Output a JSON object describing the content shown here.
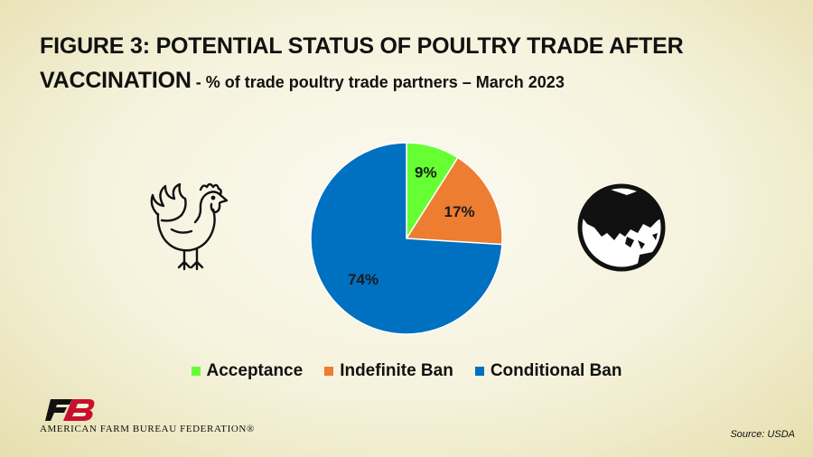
{
  "title": {
    "line1": "FIGURE  3: POTENTIAL STATUS OF POULTRY TRADE AFTER",
    "line2": "VACCINATION",
    "subtitle": " - % of trade poultry trade partners – March 2023"
  },
  "chart_data": {
    "type": "pie",
    "title": "FIGURE  3: POTENTIAL STATUS OF POULTRY TRADE AFTER VACCINATION - % of trade poultry trade partners – March 2023",
    "categories": [
      "Acceptance",
      "Indefinite Ban",
      "Conditional Ban"
    ],
    "values": [
      9,
      17,
      74
    ],
    "labels": [
      "9%",
      "17%",
      "74%"
    ],
    "colors": [
      "#66ff33",
      "#ed7d31",
      "#0070c0"
    ],
    "start_angle_deg": 0,
    "direction": "clockwise",
    "legend_position": "bottom"
  },
  "legend": [
    {
      "label": "Acceptance",
      "color": "#66ff33"
    },
    {
      "label": "Indefinite Ban",
      "color": "#ed7d31"
    },
    {
      "label": "Conditional Ban",
      "color": "#0070c0"
    }
  ],
  "icons": {
    "left": "rooster-icon",
    "right": "globe-icon"
  },
  "footer": {
    "logo_text": "FB",
    "organization": "AMERICAN FARM BUREAU FEDERATION®",
    "source": "Source: USDA"
  }
}
